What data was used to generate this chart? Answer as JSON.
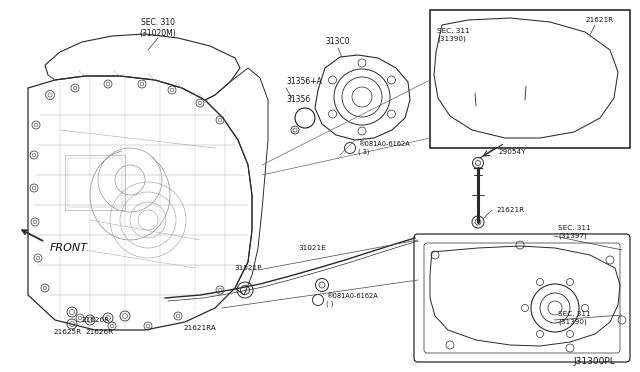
{
  "bg_color": "#ffffff",
  "line_color": "#2a2a2a",
  "text_color": "#111111",
  "labels": {
    "sec310": "SEC. 310\n(31020M)",
    "313c0": "313C0",
    "31356a": "31356+A",
    "31356": "31356",
    "081a0_top": "®081A0-6162A\n( 3)",
    "sec311_inset": "SEC. 311\n(31390)",
    "21621r_inset": "21621R",
    "29054y": "29054Y",
    "21621r_dip": "21621R",
    "sec311_pan_top": "SEC. 311\n(31397)",
    "sec311_pan_bot": "SEC. 311\n(31390)",
    "31021e": "31021E",
    "31021p": "31021P",
    "081a0_bot": "®081A0-6162A\n( )",
    "21621ra": "21621RA",
    "21625r": "21625R",
    "21626r_1": "21626R",
    "21626r_2": "21626R",
    "front": "FRONT",
    "part_num": "J31300PL"
  }
}
